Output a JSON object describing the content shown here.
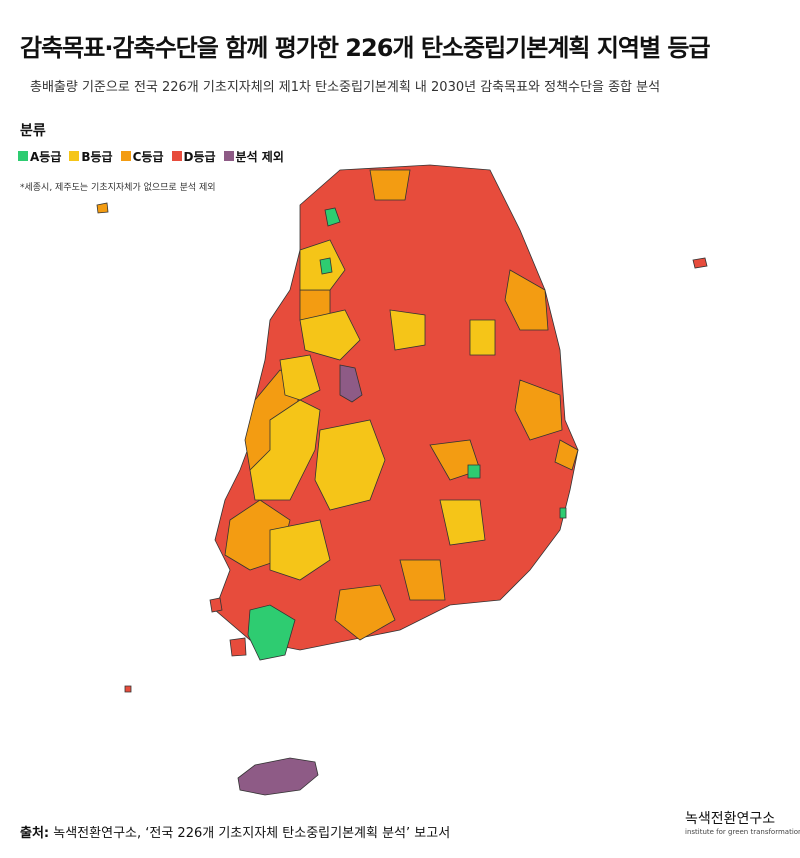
{
  "header": {
    "title": "감축목표·감축수단을 함께 평가한 226개 탄소중립기본계획 지역별 등급",
    "subtitle": "총배출량 기준으로 전국 226개 기초지자체의 제1차 탄소중립기본계획 내 2030년 감축목표와 정책수단을 종합 분석"
  },
  "legend": {
    "title": "분류",
    "items": [
      {
        "label": "A등급",
        "color": "#2ecc71"
      },
      {
        "label": "B등급",
        "color": "#f5c518"
      },
      {
        "label": "C등급",
        "color": "#f39c12"
      },
      {
        "label": "D등급",
        "color": "#e74c3c"
      },
      {
        "label": "분석 제외",
        "color": "#8e5b86"
      }
    ],
    "note": "*세종시, 제주도는 기초지자체가 없으므로 분석 제외"
  },
  "footer": {
    "source_label": "출처:",
    "source": "녹색전환연구소, ‘전국 226개 기초지자체 탄소중립기본계획 분석’ 보고서",
    "logo": "녹색전환연구소",
    "logo_sub": "institute for green transformation"
  }
}
